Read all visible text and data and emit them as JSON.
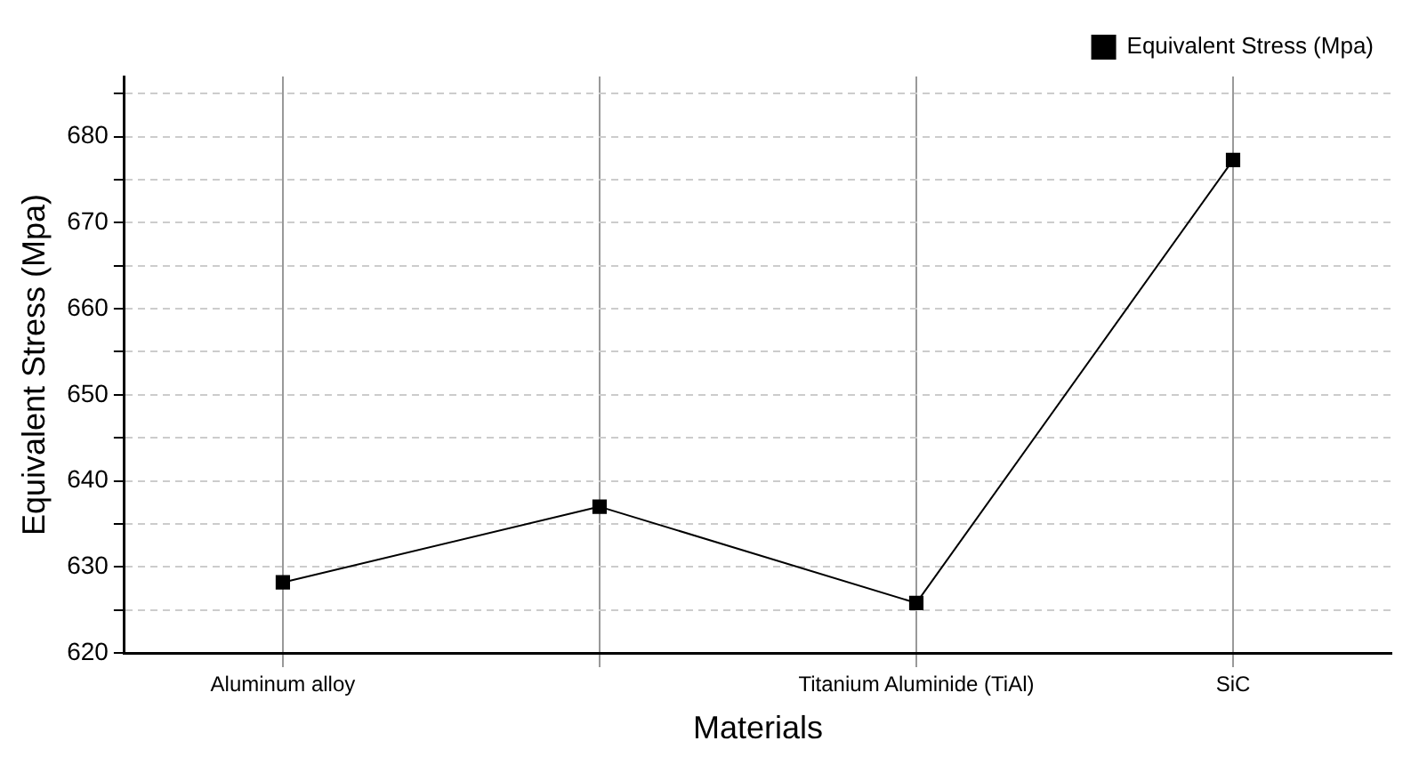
{
  "chart_data": {
    "type": "line",
    "xlabel": "Materials",
    "ylabel": "Equivalent Stress (Mpa)",
    "categories": [
      "Aluminum alloy",
      null,
      "Titanium Aluminide (TiAl)",
      "SiC"
    ],
    "series": [
      {
        "name": "Equivalent Stress (Mpa)",
        "color": "#000000",
        "values": [
          628.2,
          637.0,
          625.8,
          677.3
        ]
      }
    ],
    "ylim": [
      620,
      687
    ],
    "yticks": [
      620,
      {
        "value": 625,
        "label": null
      },
      630,
      {
        "value": 635,
        "label": null
      },
      640,
      {
        "value": 645,
        "label": null
      },
      650,
      {
        "value": 655,
        "label": null
      },
      660,
      {
        "value": 665,
        "label": null
      },
      670,
      {
        "value": 675,
        "label": null
      },
      680,
      {
        "value": 685,
        "label": null
      }
    ],
    "grid": true,
    "legend": "top right",
    "marker": "square",
    "line_style": "solid"
  }
}
